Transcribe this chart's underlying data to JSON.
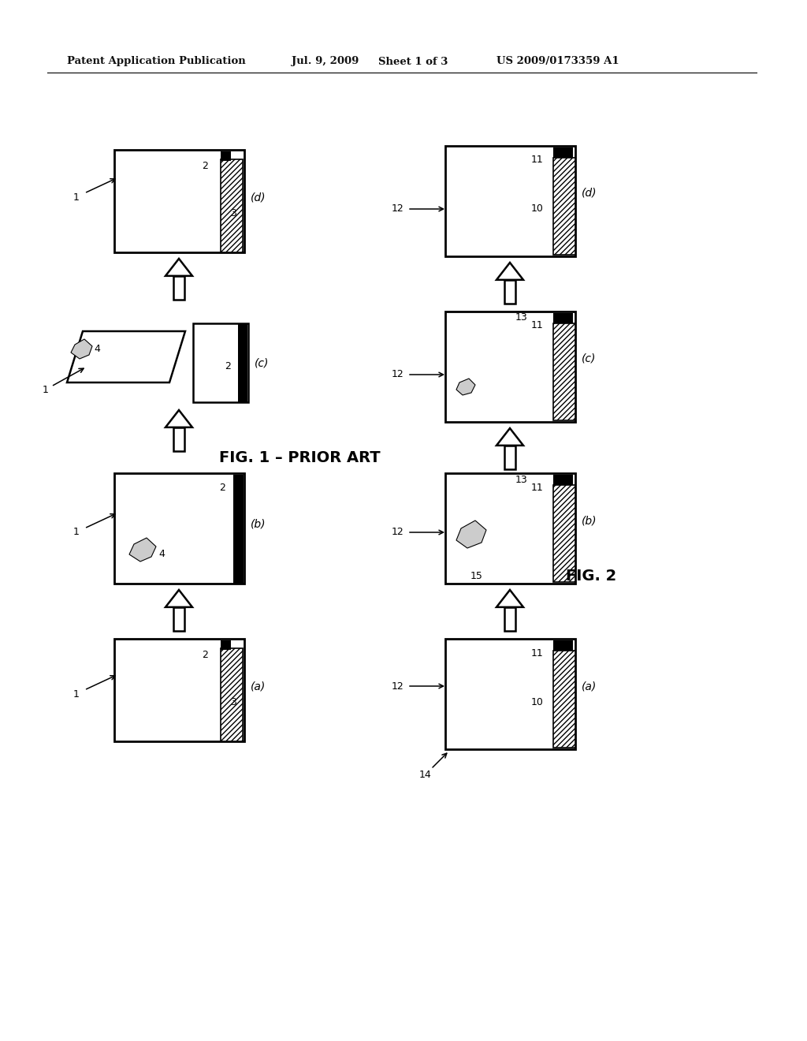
{
  "bg_color": "#ffffff",
  "header_line1": "Patent Application Publication",
  "header_line2": "Jul. 9, 2009",
  "header_line3": "Sheet 1 of 3",
  "header_line4": "US 2009/0173359 A1",
  "fig1_label": "FIG. 1 – PRIOR ART",
  "fig2_label": "FIG. 2"
}
